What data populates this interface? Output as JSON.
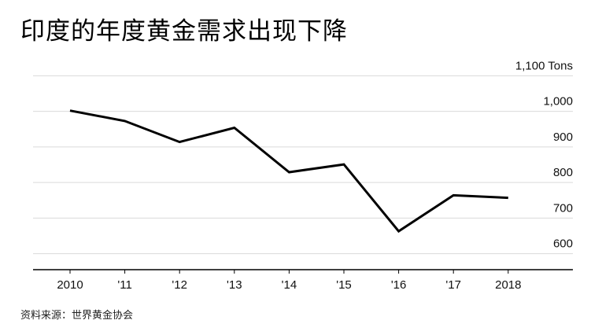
{
  "title": "印度的年度黄金需求出现下降",
  "source": "资料来源：世界黄金协会",
  "chart_data": {
    "type": "line",
    "title": "印度的年度黄金需求出现下降",
    "xlabel": "",
    "ylabel": "",
    "unit": "Tons",
    "categories": [
      "2010",
      "'11",
      "'12",
      "'13",
      "'14",
      "'15",
      "'16",
      "'17",
      "2018"
    ],
    "series": [
      {
        "values": [
          1002,
          973,
          914,
          954,
          829,
          851,
          663,
          764,
          757
        ]
      }
    ],
    "ylim": [
      560,
      1100
    ],
    "yticks": [
      600,
      700,
      800,
      900,
      1000,
      1100
    ],
    "ytick_labels": [
      "600",
      "700",
      "800",
      "900",
      "1,000",
      "1,100 Tons"
    ],
    "grid": true,
    "line_color": "#000000",
    "grid_color": "#d9d9d9"
  }
}
